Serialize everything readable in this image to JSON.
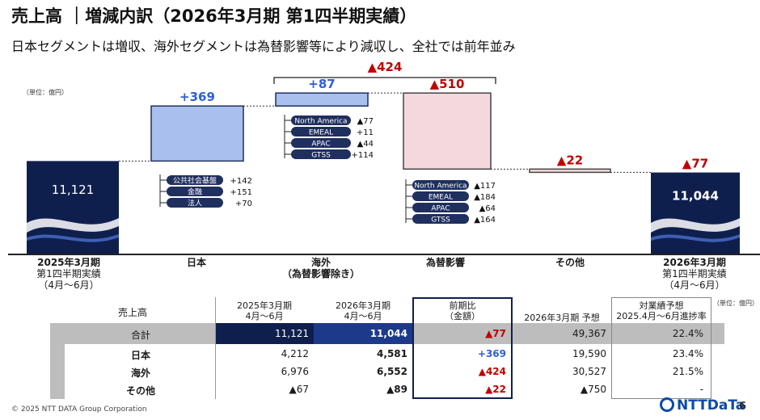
{
  "title": "売上高 ｜増減内訳（2026年3月期 第1四半期実績）",
  "subtitle": "日本セグメントは増収、海外セグメントは為替影響等により減収し、全社では前年並み",
  "unit_label": "（単位：億円）",
  "colors": {
    "navy": "#0f1f4d",
    "japan": "#a9c0ee",
    "overseas": "#a9c0ee",
    "fx": "#f5d8dd",
    "other": "#f5d8dd",
    "neg": "#c00000",
    "pos": "#2e5fd6",
    "tag": "#1f2f5e"
  },
  "chart_data": {
    "type": "waterfall",
    "categories": [
      "2025年3月期 第1四半期実績（4月～6月）",
      "日本",
      "海外（為替影響除き）",
      "為替影響",
      "その他",
      "2026年3月期 第1四半期実績（4月～6月）"
    ],
    "values": [
      11121,
      369,
      87,
      -510,
      -22,
      11044
    ],
    "measure": [
      "absolute",
      "relative",
      "relative",
      "relative",
      "relative",
      "total"
    ],
    "value_labels": [
      "11,121",
      "+369",
      "+87",
      "▲510",
      "▲22",
      "11,044"
    ],
    "overseas_total_label": "▲424",
    "total_change_label": "▲77",
    "breakdowns": {
      "japan": [
        {
          "name": "公共社会基盤",
          "value": "+142"
        },
        {
          "name": "金融",
          "value": "+151"
        },
        {
          "name": "法人",
          "value": "+70"
        }
      ],
      "overseas": [
        {
          "name": "North America",
          "value": "▲77"
        },
        {
          "name": "EMEAL",
          "value": "+11"
        },
        {
          "name": "APAC",
          "value": "▲44"
        },
        {
          "name": "GTSS",
          "value": "+114"
        }
      ],
      "fx": [
        {
          "name": "North America",
          "value": "▲117"
        },
        {
          "name": "EMEAL",
          "value": "▲184"
        },
        {
          "name": "APAC",
          "value": "▲64"
        },
        {
          "name": "GTSS",
          "value": "▲164"
        }
      ]
    }
  },
  "cat_labels": [
    {
      "l1": "2025年3月期",
      "l2": "第1四半期実績",
      "l3": "（4月～6月）"
    },
    {
      "l1": "日本",
      "l2": "",
      "l3": ""
    },
    {
      "l1": "海外",
      "l2": "（為替影響除き）",
      "l3": ""
    },
    {
      "l1": "為替影響",
      "l2": "",
      "l3": ""
    },
    {
      "l1": "その他",
      "l2": "",
      "l3": ""
    },
    {
      "l1": "2026年3月期",
      "l2": "第1四半期実績",
      "l3": "（4月～6月）"
    }
  ],
  "table": {
    "unit": "（単位：億円）",
    "corner": "売上高",
    "headers": {
      "prev": [
        "2025年3月期",
        "4月～6月"
      ],
      "curr": [
        "2026年3月期",
        "4月～6月"
      ],
      "diff": [
        "前期比",
        "（金額）"
      ],
      "forecast": "2026年3月期 予想",
      "progress": [
        "対業績予想",
        "2025.4月～6月進捗率"
      ]
    },
    "rows": [
      {
        "label": "合計",
        "prev": "11,121",
        "curr": "11,044",
        "diff": "▲77",
        "forecast": "49,367",
        "progress": "22.4%"
      },
      {
        "label": "日本",
        "prev": "4,212",
        "curr": "4,581",
        "diff": "+369",
        "forecast": "19,590",
        "progress": "23.4%"
      },
      {
        "label": "海外",
        "prev": "6,976",
        "curr": "6,552",
        "diff": "▲424",
        "forecast": "30,527",
        "progress": "21.5%"
      },
      {
        "label": "その他",
        "prev": "▲67",
        "curr": "▲89",
        "diff": "▲22",
        "forecast": "▲750",
        "progress": "-"
      }
    ]
  },
  "footer": "© 2025 NTT DATA Group Corporation",
  "logo_text": "NTTDaTa",
  "page_number": "6"
}
